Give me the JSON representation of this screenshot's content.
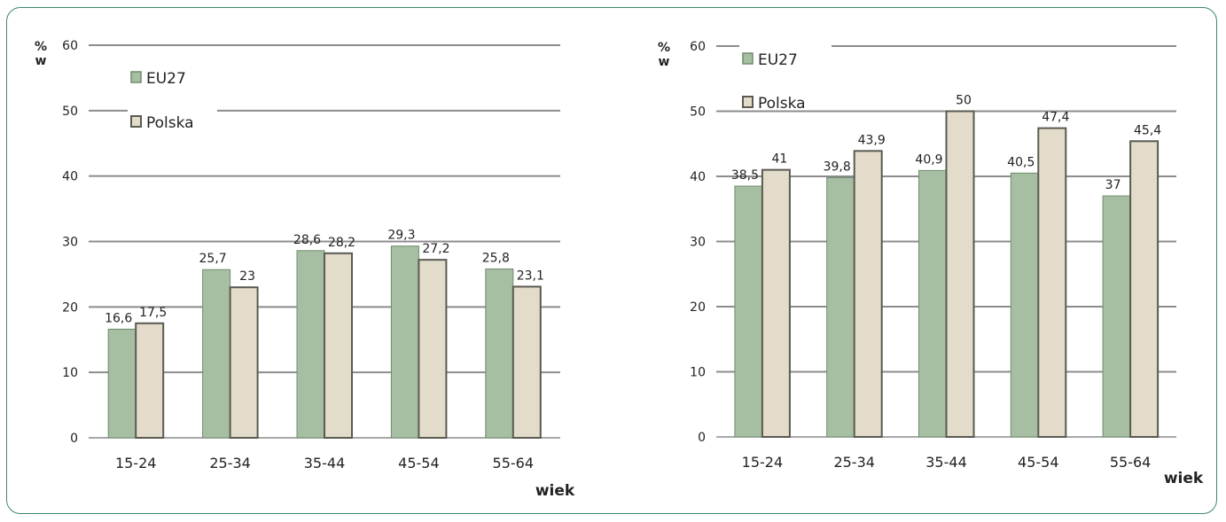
{
  "colors": {
    "eu27_fill": "#a6bfa3",
    "eu27_stroke": "#6f8c6c",
    "polska_fill": "#e3dccb",
    "polska_stroke": "#5a5a52",
    "grid": "#8c8c8c",
    "frame": "#3b8a66"
  },
  "chart_data": [
    {
      "type": "bar",
      "categories": [
        "15-24",
        "25-34",
        "35-44",
        "45-54",
        "55-64"
      ],
      "series": [
        {
          "name": "EU27",
          "values": [
            16.6,
            25.7,
            28.6,
            29.3,
            25.8
          ],
          "labels": [
            "16,6",
            "25,7",
            "28,6",
            "29,3",
            "25,8"
          ]
        },
        {
          "name": "Polska",
          "values": [
            17.5,
            23,
            28.2,
            27.2,
            23.1
          ],
          "labels": [
            "17,5",
            "23",
            "28,2",
            "27,2",
            "23,1"
          ]
        }
      ],
      "yticks": [
        "0",
        "10",
        "20",
        "30",
        "40",
        "50",
        "60"
      ],
      "ylim": [
        0,
        60
      ],
      "ylabel_line1": "%",
      "ylabel_line2": "w",
      "xlabel": "wiek",
      "grid": true,
      "legend_position": "top-left"
    },
    {
      "type": "bar",
      "categories": [
        "15-24",
        "25-34",
        "35-44",
        "45-54",
        "55-64"
      ],
      "series": [
        {
          "name": "EU27",
          "values": [
            38.5,
            39.8,
            40.9,
            40.5,
            37
          ],
          "labels": [
            "38,5",
            "39,8",
            "40,9",
            "40,5",
            "37"
          ]
        },
        {
          "name": "Polska",
          "values": [
            41,
            43.9,
            50,
            47.4,
            45.4
          ],
          "labels": [
            "41",
            "43,9",
            "50",
            "47,4",
            "45,4"
          ]
        }
      ],
      "yticks": [
        "0",
        "10",
        "20",
        "30",
        "40",
        "50",
        "60"
      ],
      "ylim": [
        0,
        60
      ],
      "ylabel_line1": "%",
      "ylabel_line2": "w",
      "xlabel": "wiek",
      "grid": true,
      "legend_position": "top-left"
    }
  ]
}
